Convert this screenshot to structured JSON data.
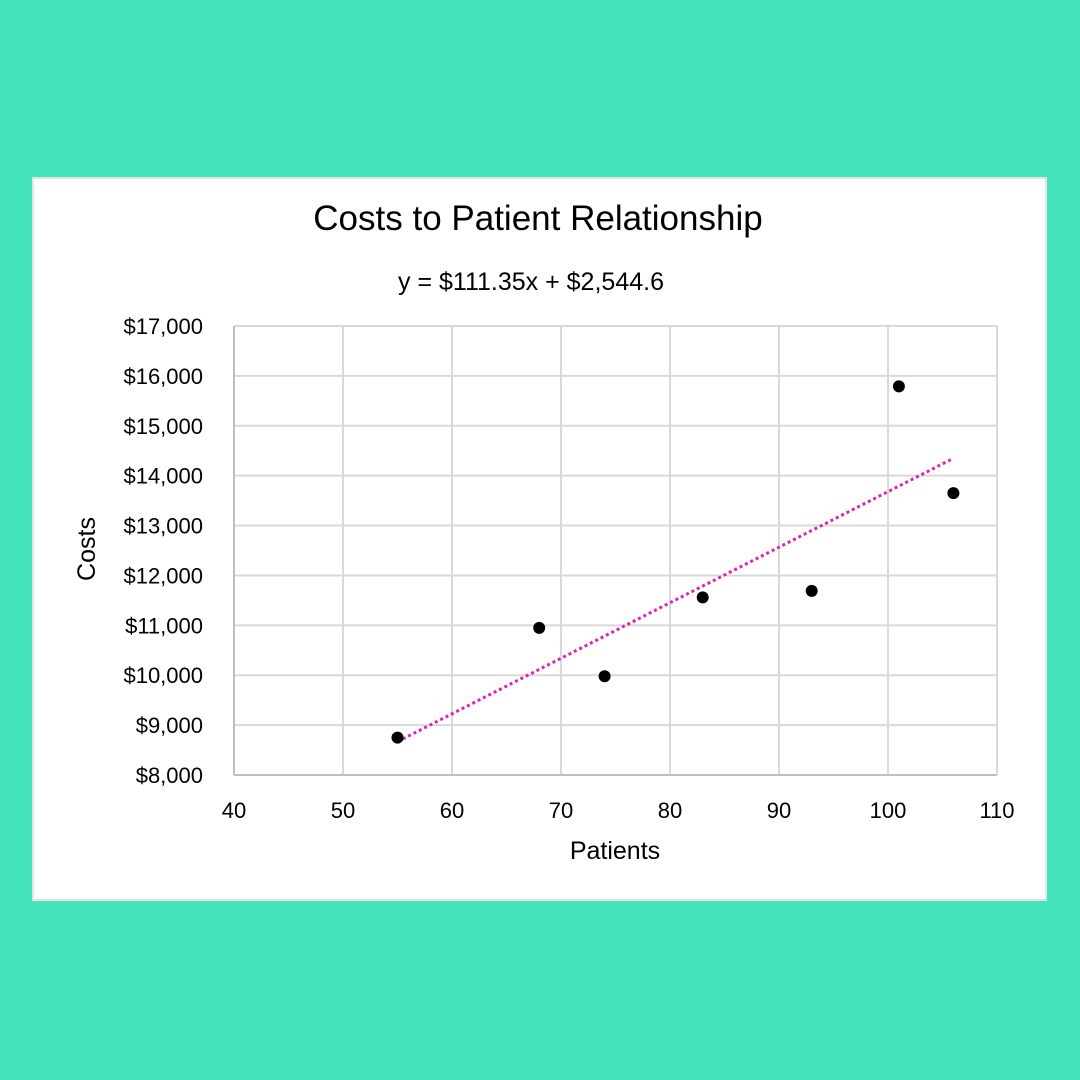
{
  "page": {
    "background_color": "#46e3bf",
    "card_color": "#ffffff"
  },
  "chart_data": {
    "type": "scatter",
    "title": "Costs to Patient Relationship",
    "equation": "y = $111.35x + $2,544.6",
    "xlabel": "Patients",
    "ylabel": "Costs",
    "xlim": [
      40,
      110
    ],
    "ylim": [
      8000,
      17000
    ],
    "x_ticks": [
      40,
      50,
      60,
      70,
      80,
      90,
      100,
      110
    ],
    "y_ticks": [
      8000,
      9000,
      10000,
      11000,
      12000,
      13000,
      14000,
      15000,
      16000,
      17000
    ],
    "x_tick_labels": [
      "40",
      "50",
      "60",
      "70",
      "80",
      "90",
      "100",
      "110"
    ],
    "y_tick_labels": [
      "$8,000",
      "$9,000",
      "$10,000",
      "$11,000",
      "$12,000",
      "$13,000",
      "$14,000",
      "$15,000",
      "$16,000",
      "$17,000"
    ],
    "grid": true,
    "points": [
      {
        "x": 55,
        "y": 8750
      },
      {
        "x": 68,
        "y": 10950
      },
      {
        "x": 74,
        "y": 9980
      },
      {
        "x": 83,
        "y": 11560
      },
      {
        "x": 93,
        "y": 11690
      },
      {
        "x": 101,
        "y": 15790
      },
      {
        "x": 106,
        "y": 13650
      }
    ],
    "trendline": {
      "slope": 111.35,
      "intercept": 2544.6,
      "x_start": 55,
      "x_end": 106,
      "color": "#e020b8",
      "style": "dotted"
    },
    "point_color": "#000000",
    "grid_color": "#d9d9d9",
    "axis_color": "#bfbfbf"
  }
}
